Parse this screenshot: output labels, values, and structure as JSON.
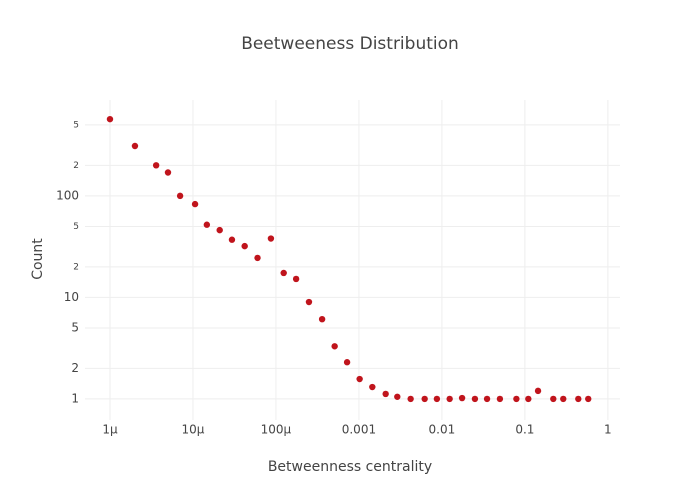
{
  "chart_data": {
    "type": "scatter",
    "title": "Beetweeness Distribution",
    "xlabel": "Betweenness centrality",
    "ylabel": "Count",
    "xscale": "log",
    "yscale": "log",
    "grid": true,
    "color": "#c0141c",
    "xlim": [
      5e-07,
      1.4
    ],
    "ylim": [
      0.62,
      880
    ],
    "xticks": [
      {
        "value": 1e-06,
        "label": "1µ"
      },
      {
        "value": 1e-05,
        "label": "10µ"
      },
      {
        "value": 0.0001,
        "label": "100µ"
      },
      0.001,
      0.01,
      0.1,
      1
    ],
    "yticks": [
      {
        "value": 500,
        "label": "5"
      },
      {
        "value": 200,
        "label": "2"
      },
      100,
      {
        "value": 50,
        "label": "5"
      },
      {
        "value": 20,
        "label": "2"
      },
      10,
      5,
      2,
      1
    ],
    "x": [
      1e-06,
      2e-06,
      3.6e-06,
      5e-06,
      7e-06,
      1.06e-05,
      1.47e-05,
      2.1e-05,
      2.95e-05,
      4.2e-05,
      6e-05,
      8.7e-05,
      0.000124,
      0.000175,
      0.00025,
      0.00036,
      0.00051,
      0.00072,
      0.00102,
      0.00145,
      0.0021,
      0.0029,
      0.0042,
      0.0062,
      0.0087,
      0.0124,
      0.0175,
      0.025,
      0.035,
      0.05,
      0.079,
      0.11,
      0.144,
      0.22,
      0.29,
      0.44,
      0.58
    ],
    "values": [
      570,
      310,
      200,
      170,
      100,
      83,
      52,
      46,
      37,
      32,
      24.5,
      38,
      17.4,
      15.2,
      9,
      6.1,
      3.3,
      2.3,
      1.57,
      1.31,
      1.12,
      1.05,
      1,
      1,
      1,
      1,
      1.02,
      1,
      1,
      1,
      1,
      1,
      1.2,
      1,
      1,
      1,
      1
    ]
  }
}
